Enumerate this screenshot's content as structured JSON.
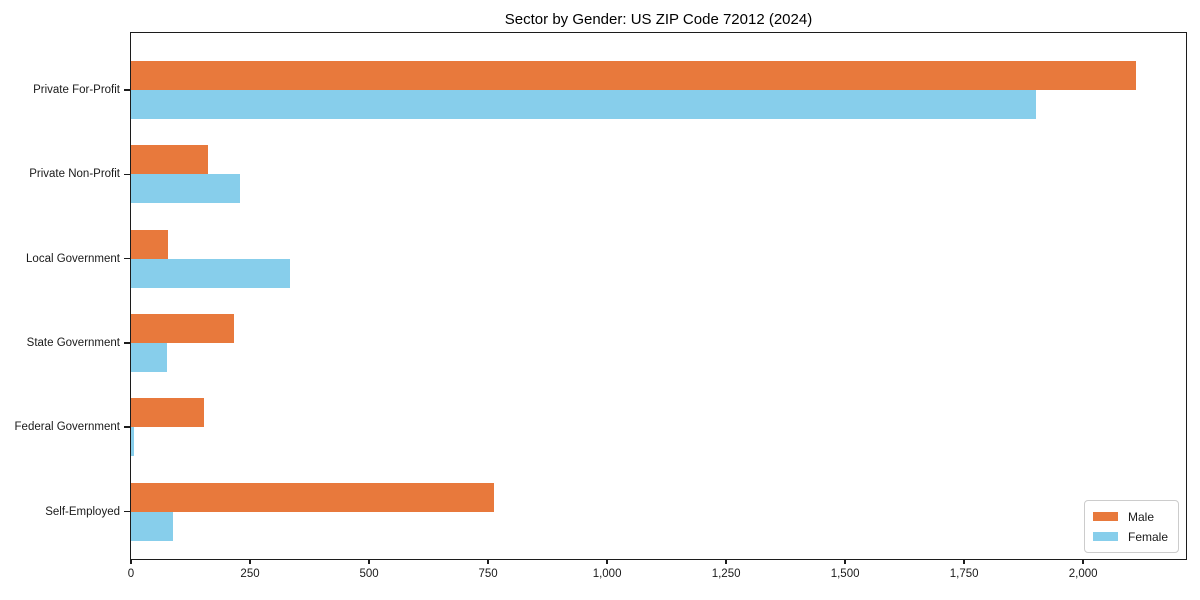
{
  "figure": {
    "background": "#ffffff",
    "spine_color": "#1c1c1c",
    "text_color": "#1a1a1a"
  },
  "chart_data": {
    "type": "bar",
    "orientation": "horizontal",
    "title": "Sector by Gender: US ZIP Code 72012 (2024)",
    "xlabel": "",
    "ylabel": "",
    "categories": [
      "Private For-Profit",
      "Private Non-Profit",
      "Local Government",
      "State Government",
      "Federal Government",
      "Self-Employed"
    ],
    "series": [
      {
        "name": "Male",
        "color": "#e8793c",
        "values": [
          2110,
          162,
          78,
          217,
          153,
          763
        ]
      },
      {
        "name": "Female",
        "color": "#87ceeb",
        "values": [
          1900,
          228,
          333,
          76,
          7,
          89
        ]
      }
    ],
    "xlim": [
      0,
      2216
    ],
    "xticks": {
      "values": [
        0,
        250,
        500,
        750,
        1000,
        1250,
        1500,
        1750,
        2000
      ],
      "labels": [
        "0",
        "250",
        "500",
        "750",
        "1,000",
        "1,250",
        "1,500",
        "1,750",
        "2,000"
      ]
    },
    "grid": false,
    "legend": {
      "position": "lower right"
    }
  }
}
